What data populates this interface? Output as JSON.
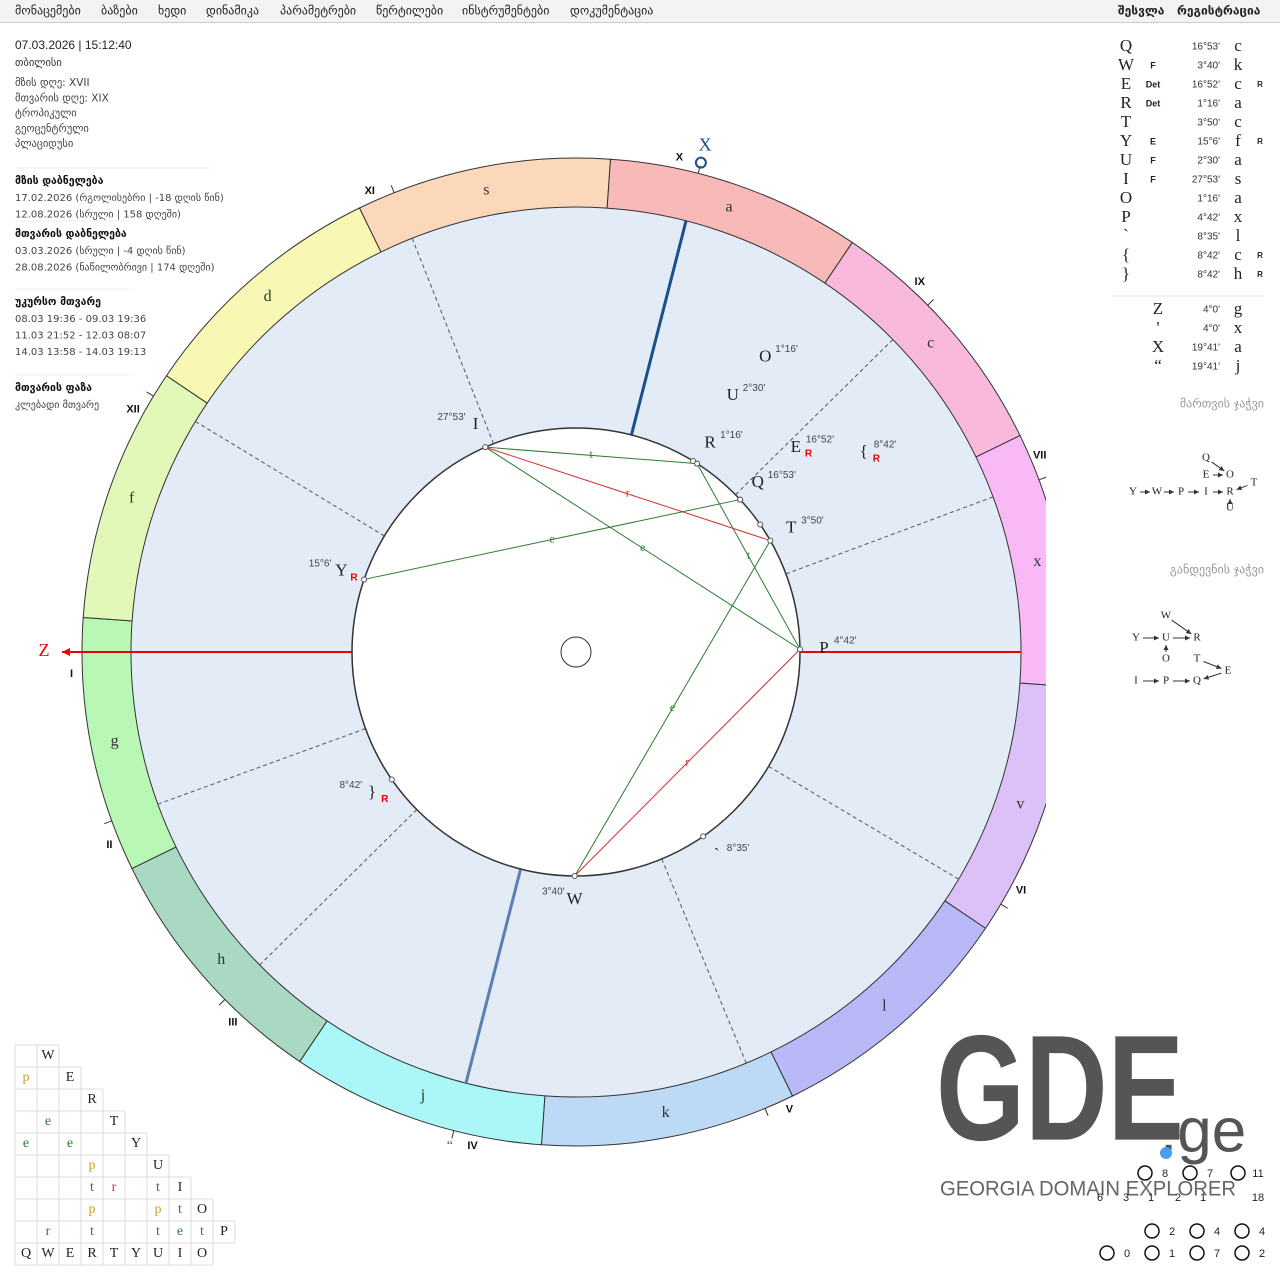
{
  "nav": {
    "items": [
      "მონაცემები",
      "ბაზები",
      "ხედი",
      "დინამიკა",
      "პარამეტრები",
      "წერტილები",
      "ინსტრუმენტები",
      "დოკუმენტაცია"
    ],
    "auth": [
      "შესვლა",
      "რეგისტრაცია"
    ]
  },
  "info": {
    "datetime": "07.03.2026 | 15:12:40",
    "location": "თბილისი",
    "details": [
      "მზის დღე: XVII",
      "მთვარის დღე: XIX",
      "ტროპიკული",
      "გეოცენტრული",
      "პლაციდუსი"
    ]
  },
  "events": [
    {
      "title": "მზის დაბნელება",
      "lines": [
        "17.02.2026 (რგოლისებრი | -18 დღის წინ)",
        "12.08.2026 (სრული | 158 დღეში)"
      ]
    },
    {
      "title": "მთვარის დაბნელება",
      "lines": [
        "03.03.2026 (სრული | -4 დღის წინ)",
        "28.08.2026 (ნაწილობრივი | 174 დღეში)"
      ]
    },
    {
      "title": "უკურსო მთვარე",
      "lines": [
        "08.03 19:36 - 09.03 19:36",
        "11.03 21:52 - 12.03 08:07",
        "14.03 13:58 - 14.03 19:13"
      ]
    },
    {
      "title": "მთვარის ფაზა",
      "lines": [
        "კლებადი მთვარე"
      ]
    }
  ],
  "zodiac": [
    {
      "glyph": "g",
      "color": "#b9f7b4"
    },
    {
      "glyph": "h",
      "color": "#a9d9c2"
    },
    {
      "glyph": "j",
      "color": "#abf6f6"
    },
    {
      "glyph": "k",
      "color": "#bcdaf6"
    },
    {
      "glyph": "l",
      "color": "#b9b9f8"
    },
    {
      "glyph": "v",
      "color": "#dcc1f8"
    },
    {
      "glyph": "x",
      "color": "#f8b9f6"
    },
    {
      "glyph": "c",
      "color": "#f8b9dc"
    },
    {
      "glyph": "a",
      "color": "#f8b9b9"
    },
    {
      "glyph": "s",
      "color": "#fad8b9"
    },
    {
      "glyph": "d",
      "color": "#f8f8b4"
    },
    {
      "glyph": "f",
      "color": "#e2f8b9"
    }
  ],
  "houses": [
    "I",
    "II",
    "III",
    "IV",
    "V",
    "VI",
    "VII",
    "VIII",
    "IX",
    "X",
    "XI",
    "XII"
  ],
  "planets": [
    {
      "glyph": "Q",
      "degree": "16°53'",
      "sign": "c"
    },
    {
      "glyph": "W",
      "dignity": "F",
      "degree": "3°40'",
      "sign": "k"
    },
    {
      "glyph": "E",
      "dignity": "Det",
      "degree": "16°52'",
      "sign": "c",
      "retro": "R"
    },
    {
      "glyph": "R",
      "dignity": "Det",
      "degree": "1°16'",
      "sign": "a"
    },
    {
      "glyph": "T",
      "degree": "3°50'",
      "sign": "c"
    },
    {
      "glyph": "Y",
      "dignity": "E",
      "degree": "15°6'",
      "sign": "f",
      "retro": "R"
    },
    {
      "glyph": "U",
      "dignity": "F",
      "degree": "2°30'",
      "sign": "a"
    },
    {
      "glyph": "I",
      "dignity": "F",
      "degree": "27°53'",
      "sign": "s"
    },
    {
      "glyph": "O",
      "degree": "1°16'",
      "sign": "a"
    },
    {
      "glyph": "P",
      "degree": "4°42'",
      "sign": "x"
    },
    {
      "glyph": "`",
      "degree": "8°35'",
      "sign": "l"
    },
    {
      "glyph": "{",
      "degree": "8°42'",
      "sign": "c",
      "retro": "R"
    },
    {
      "glyph": "}",
      "degree": "8°42'",
      "sign": "h",
      "retro": "R"
    }
  ],
  "angles": [
    {
      "glyph": "Z",
      "degree": "4°0'",
      "sign": "g"
    },
    {
      "glyph": "'",
      "degree": "4°0'",
      "sign": "x"
    },
    {
      "glyph": "X",
      "degree": "19°41'",
      "sign": "a"
    },
    {
      "glyph": "“",
      "degree": "19°41'",
      "sign": "j"
    }
  ],
  "aspects": [
    {
      "from": "I",
      "to": "R",
      "label": "t"
    },
    {
      "from": "R",
      "to": "P",
      "label": "t"
    },
    {
      "from": "I",
      "to": "P",
      "label": "e"
    },
    {
      "from": "I",
      "to": "T",
      "label": "r"
    },
    {
      "from": "Y",
      "to": "Q",
      "label": "e"
    },
    {
      "from": "W",
      "to": "T",
      "label": "e"
    },
    {
      "from": "W",
      "to": "P",
      "label": "r"
    }
  ],
  "aspect_colors": {
    "t": "#2e7d32",
    "e": "#2e7d32",
    "r": "#d32f2f",
    "p": "#c9a227"
  },
  "rulership_chain": {
    "title": "მართვის ჯაჭვი",
    "nodes": [
      "Q",
      "E",
      "O",
      "T",
      "Y",
      "W",
      "P",
      "I",
      "R",
      "U"
    ]
  },
  "dispositor_chain": {
    "title": "განდევნის ჯაჭვი",
    "nodes": [
      "W",
      "Y",
      "U",
      "R",
      "O",
      "T",
      "E",
      "I",
      "P",
      "Q"
    ]
  },
  "aspect_grid": {
    "rows": [
      {
        "planet": "W",
        "cells": [
          null
        ]
      },
      {
        "planet": "E",
        "cells": [
          "p",
          null
        ]
      },
      {
        "planet": "R",
        "cells": [
          null,
          null,
          null
        ]
      },
      {
        "planet": "T",
        "cells": [
          null,
          "e",
          null,
          null
        ]
      },
      {
        "planet": "Y",
        "cells": [
          "e",
          null,
          "e",
          null,
          null
        ]
      },
      {
        "planet": "U",
        "cells": [
          null,
          null,
          null,
          "p",
          null,
          null
        ]
      },
      {
        "planet": "I",
        "cells": [
          null,
          null,
          null,
          "t",
          "r",
          null,
          "t"
        ]
      },
      {
        "planet": "O",
        "cells": [
          null,
          null,
          null,
          "p",
          null,
          null,
          "p",
          "t"
        ]
      },
      {
        "planet": "P",
        "cells": [
          null,
          "r",
          null,
          "t",
          null,
          null,
          "t",
          "e",
          "t"
        ]
      }
    ],
    "footer": [
      "Q",
      "W",
      "E",
      "R",
      "T",
      "Y",
      "U",
      "I",
      "O"
    ]
  },
  "logo": {
    "name": "GDE",
    "tld": ".ge",
    "tagline": "GEORGIA DOMAIN EXPLORER"
  },
  "stats": [
    [
      8,
      7,
      11
    ],
    [
      6,
      3,
      1,
      2,
      1,
      18
    ],
    [
      2,
      4,
      4
    ],
    [
      0,
      1,
      7,
      2
    ]
  ]
}
